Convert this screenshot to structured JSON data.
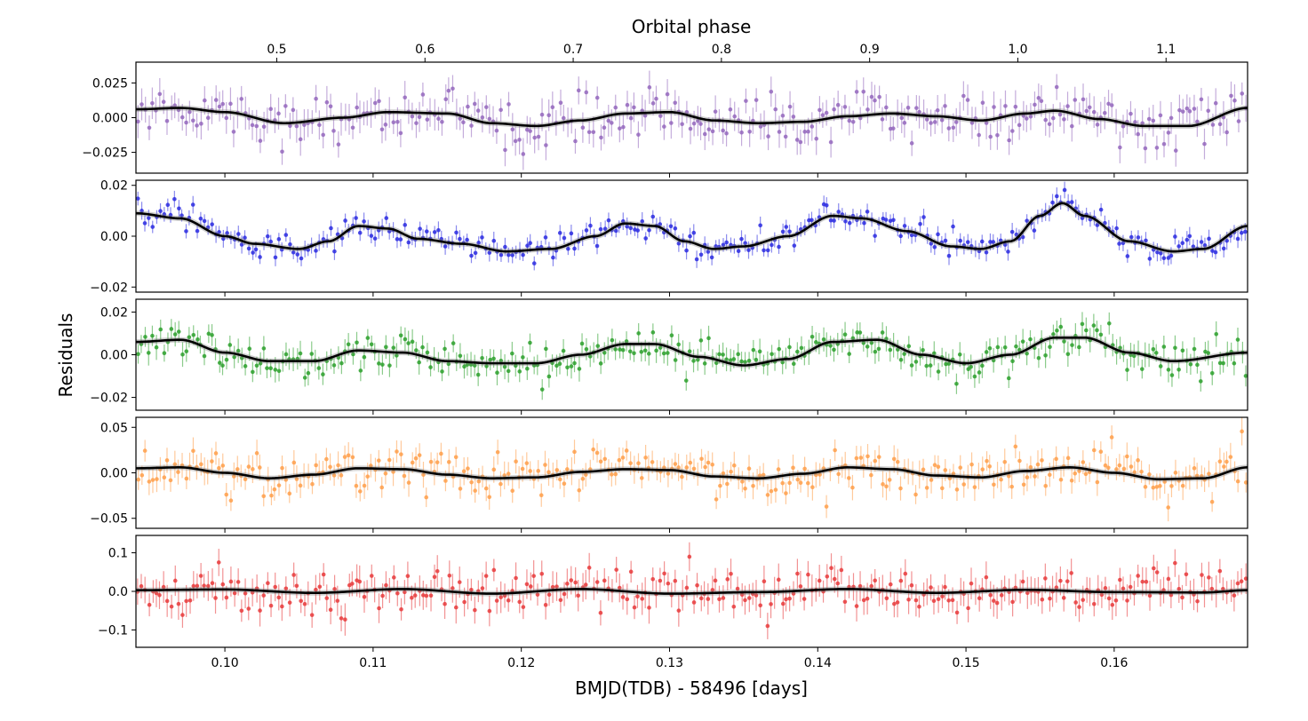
{
  "figure": {
    "top_axis_label": "Orbital phase",
    "x_axis_label": "BMJD(TDB) - 58496 [days]",
    "y_axis_label": "Residuals"
  },
  "chart_data": {
    "type": "scatter",
    "description_note": "",
    "x_range": [
      0.094,
      0.169
    ],
    "x_ticks": [
      0.1,
      0.11,
      0.12,
      0.13,
      0.14,
      0.15,
      0.16
    ],
    "x_tick_labels": [
      "0.10",
      "0.11",
      "0.12",
      "0.13",
      "0.14",
      "0.15",
      "0.16"
    ],
    "top_axis": {
      "label": "Orbital phase",
      "tick_labels": [
        "0.5",
        "0.6",
        "0.7",
        "0.8",
        "0.9",
        "1.0",
        "1.1"
      ],
      "tick_positions_in_x_units": [
        0.1035,
        0.1135,
        0.1235,
        0.1335,
        0.1435,
        0.1535,
        0.1635
      ]
    },
    "grid": false,
    "legend": "none",
    "model_color": "#000000",
    "panels": [
      {
        "color": "#9467bd",
        "ylim": [
          -0.04,
          0.04
        ],
        "y_ticks": [
          -0.025,
          0.0,
          0.025
        ],
        "y_tick_labels": [
          "−0.025",
          "0.000",
          "0.025"
        ],
        "scatter": 0.0085,
        "err": 0.01,
        "model": {
          "x": [
            0.094,
            0.097,
            0.1,
            0.104,
            0.108,
            0.111,
            0.115,
            0.118,
            0.121,
            0.124,
            0.127,
            0.13,
            0.133,
            0.136,
            0.139,
            0.142,
            0.145,
            0.148,
            0.151,
            0.154,
            0.156,
            0.159,
            0.162,
            0.165,
            0.169
          ],
          "y": [
            0.006,
            0.007,
            0.004,
            -0.004,
            0.0,
            0.004,
            0.003,
            -0.004,
            -0.006,
            -0.002,
            0.003,
            0.004,
            -0.002,
            -0.004,
            -0.003,
            0.001,
            0.003,
            0.001,
            -0.002,
            0.003,
            0.005,
            -0.001,
            -0.006,
            -0.006,
            0.007
          ]
        }
      },
      {
        "color": "#2a2ae0",
        "ylim": [
          -0.022,
          0.022
        ],
        "y_ticks": [
          -0.02,
          0.0,
          0.02
        ],
        "y_tick_labels": [
          "−0.02",
          "0.00",
          "0.02"
        ],
        "scatter": 0.0028,
        "err": 0.003,
        "model": {
          "x": [
            0.094,
            0.097,
            0.1,
            0.102,
            0.105,
            0.107,
            0.109,
            0.111,
            0.113,
            0.116,
            0.119,
            0.122,
            0.125,
            0.127,
            0.129,
            0.131,
            0.133,
            0.135,
            0.138,
            0.141,
            0.143,
            0.146,
            0.149,
            0.151,
            0.153,
            0.155,
            0.1565,
            0.158,
            0.161,
            0.164,
            0.166,
            0.169
          ],
          "y": [
            0.009,
            0.007,
            0.0,
            -0.003,
            -0.005,
            -0.002,
            0.004,
            0.003,
            -0.001,
            -0.003,
            -0.006,
            -0.005,
            0.0,
            0.005,
            0.004,
            -0.002,
            -0.005,
            -0.004,
            0.0,
            0.008,
            0.007,
            0.002,
            -0.004,
            -0.005,
            -0.002,
            0.008,
            0.013,
            0.008,
            -0.002,
            -0.006,
            -0.005,
            0.004
          ]
        }
      },
      {
        "color": "#2ca02c",
        "ylim": [
          -0.026,
          0.026
        ],
        "y_ticks": [
          -0.02,
          0.0,
          0.02
        ],
        "y_tick_labels": [
          "−0.02",
          "0.00",
          "0.02"
        ],
        "scatter": 0.0045,
        "err": 0.005,
        "model": {
          "x": [
            0.094,
            0.097,
            0.1,
            0.103,
            0.106,
            0.109,
            0.112,
            0.115,
            0.118,
            0.121,
            0.124,
            0.127,
            0.129,
            0.132,
            0.135,
            0.138,
            0.141,
            0.144,
            0.147,
            0.15,
            0.153,
            0.156,
            0.158,
            0.161,
            0.164,
            0.169
          ],
          "y": [
            0.006,
            0.007,
            0.001,
            -0.003,
            -0.003,
            0.002,
            0.001,
            -0.003,
            -0.004,
            -0.004,
            0.0,
            0.005,
            0.005,
            -0.001,
            -0.005,
            -0.002,
            0.006,
            0.007,
            0.0,
            -0.004,
            0.0,
            0.008,
            0.008,
            0.001,
            -0.003,
            0.001
          ]
        }
      },
      {
        "color": "#ff9f4a",
        "ylim": [
          -0.061,
          0.061
        ],
        "y_ticks": [
          -0.05,
          0.0,
          0.05
        ],
        "y_tick_labels": [
          "−0.05",
          "0.00",
          "0.05"
        ],
        "scatter": 0.012,
        "err": 0.013,
        "model": {
          "x": [
            0.094,
            0.097,
            0.1,
            0.103,
            0.106,
            0.109,
            0.112,
            0.115,
            0.118,
            0.121,
            0.124,
            0.127,
            0.13,
            0.133,
            0.136,
            0.139,
            0.142,
            0.145,
            0.148,
            0.151,
            0.154,
            0.157,
            0.16,
            0.163,
            0.166,
            0.169
          ],
          "y": [
            0.005,
            0.006,
            0.0,
            -0.006,
            -0.002,
            0.005,
            0.004,
            -0.002,
            -0.006,
            -0.005,
            0.001,
            0.004,
            0.003,
            -0.004,
            -0.006,
            -0.001,
            0.006,
            0.004,
            -0.003,
            -0.005,
            0.002,
            0.006,
            0.0,
            -0.007,
            -0.006,
            0.006
          ]
        }
      },
      {
        "color": "#e8393b",
        "ylim": [
          -0.145,
          0.145
        ],
        "y_ticks": [
          -0.1,
          0.0,
          0.1
        ],
        "y_tick_labels": [
          "−0.1",
          "0.0",
          "0.1"
        ],
        "scatter": 0.028,
        "err": 0.035,
        "model": {
          "x": [
            0.094,
            0.1,
            0.106,
            0.112,
            0.118,
            0.124,
            0.13,
            0.136,
            0.142,
            0.148,
            0.154,
            0.16,
            0.166,
            0.169
          ],
          "y": [
            0.003,
            0.005,
            -0.004,
            0.006,
            -0.006,
            0.006,
            -0.006,
            -0.002,
            0.006,
            -0.004,
            0.004,
            -0.002,
            -0.003,
            0.003
          ]
        }
      }
    ]
  }
}
